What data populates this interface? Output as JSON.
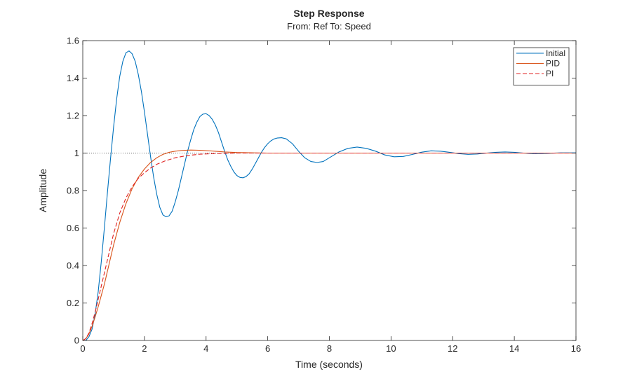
{
  "chart_data": {
    "type": "line",
    "title": "Step Response",
    "subtitle": "From: Ref  To: Speed",
    "xlabel": "Time (seconds)",
    "ylabel": "Amplitude",
    "xlim": [
      0,
      16
    ],
    "ylim": [
      0,
      1.6
    ],
    "xticks": [
      0,
      2,
      4,
      6,
      8,
      10,
      12,
      14,
      16
    ],
    "yticks": [
      0,
      0.2,
      0.4,
      0.6,
      0.8,
      1,
      1.2,
      1.4,
      1.6
    ],
    "grid": false,
    "legend_position": "top-right",
    "reference_line": {
      "y": 1,
      "style": "dotted",
      "color": "#333333"
    },
    "series": [
      {
        "name": "Initial",
        "color": "#0072BD",
        "style": "solid",
        "points": [
          [
            0,
            0
          ],
          [
            0.1,
            0.0
          ],
          [
            0.2,
            0.02
          ],
          [
            0.3,
            0.06
          ],
          [
            0.4,
            0.14
          ],
          [
            0.5,
            0.26
          ],
          [
            0.6,
            0.42
          ],
          [
            0.7,
            0.6
          ],
          [
            0.8,
            0.79
          ],
          [
            0.9,
            0.97
          ],
          [
            1.0,
            1.14
          ],
          [
            1.1,
            1.29
          ],
          [
            1.2,
            1.41
          ],
          [
            1.3,
            1.49
          ],
          [
            1.4,
            1.535
          ],
          [
            1.5,
            1.545
          ],
          [
            1.6,
            1.53
          ],
          [
            1.7,
            1.49
          ],
          [
            1.8,
            1.42
          ],
          [
            1.9,
            1.33
          ],
          [
            2.0,
            1.22
          ],
          [
            2.1,
            1.1
          ],
          [
            2.2,
            0.98
          ],
          [
            2.3,
            0.87
          ],
          [
            2.4,
            0.78
          ],
          [
            2.5,
            0.71
          ],
          [
            2.6,
            0.67
          ],
          [
            2.7,
            0.66
          ],
          [
            2.8,
            0.665
          ],
          [
            2.9,
            0.69
          ],
          [
            3.0,
            0.74
          ],
          [
            3.1,
            0.8
          ],
          [
            3.2,
            0.87
          ],
          [
            3.3,
            0.94
          ],
          [
            3.4,
            1.01
          ],
          [
            3.5,
            1.07
          ],
          [
            3.6,
            1.125
          ],
          [
            3.7,
            1.165
          ],
          [
            3.8,
            1.195
          ],
          [
            3.9,
            1.208
          ],
          [
            4.0,
            1.21
          ],
          [
            4.1,
            1.2
          ],
          [
            4.2,
            1.18
          ],
          [
            4.3,
            1.15
          ],
          [
            4.4,
            1.11
          ],
          [
            4.5,
            1.06
          ],
          [
            4.6,
            1.01
          ],
          [
            4.7,
            0.965
          ],
          [
            4.8,
            0.93
          ],
          [
            4.9,
            0.9
          ],
          [
            5.0,
            0.88
          ],
          [
            5.1,
            0.87
          ],
          [
            5.2,
            0.868
          ],
          [
            5.3,
            0.875
          ],
          [
            5.4,
            0.89
          ],
          [
            5.5,
            0.915
          ],
          [
            5.6,
            0.945
          ],
          [
            5.7,
            0.975
          ],
          [
            5.8,
            1.005
          ],
          [
            5.9,
            1.03
          ],
          [
            6.0,
            1.05
          ],
          [
            6.1,
            1.065
          ],
          [
            6.2,
            1.075
          ],
          [
            6.3,
            1.08
          ],
          [
            6.45,
            1.082
          ],
          [
            6.6,
            1.076
          ],
          [
            6.8,
            1.05
          ],
          [
            7.0,
            1.01
          ],
          [
            7.2,
            0.975
          ],
          [
            7.4,
            0.955
          ],
          [
            7.6,
            0.95
          ],
          [
            7.8,
            0.955
          ],
          [
            8.0,
            0.975
          ],
          [
            8.3,
            1.005
          ],
          [
            8.6,
            1.025
          ],
          [
            8.9,
            1.032
          ],
          [
            9.2,
            1.025
          ],
          [
            9.5,
            1.01
          ],
          [
            9.8,
            0.99
          ],
          [
            10.1,
            0.98
          ],
          [
            10.4,
            0.982
          ],
          [
            10.7,
            0.993
          ],
          [
            11.0,
            1.005
          ],
          [
            11.3,
            1.012
          ],
          [
            11.6,
            1.01
          ],
          [
            11.9,
            1.004
          ],
          [
            12.2,
            0.997
          ],
          [
            12.5,
            0.993
          ],
          [
            12.8,
            0.995
          ],
          [
            13.1,
            1.0
          ],
          [
            13.4,
            1.004
          ],
          [
            13.7,
            1.006
          ],
          [
            14.0,
            1.004
          ],
          [
            14.3,
            1.0
          ],
          [
            14.6,
            0.997
          ],
          [
            15.0,
            0.998
          ],
          [
            15.5,
            1.001
          ],
          [
            16.0,
            1.001
          ]
        ]
      },
      {
        "name": "PID",
        "color": "#D95319",
        "style": "solid",
        "points": [
          [
            0,
            0
          ],
          [
            0.1,
            0.01
          ],
          [
            0.2,
            0.035
          ],
          [
            0.3,
            0.075
          ],
          [
            0.4,
            0.125
          ],
          [
            0.5,
            0.18
          ],
          [
            0.6,
            0.24
          ],
          [
            0.7,
            0.3
          ],
          [
            0.8,
            0.37
          ],
          [
            0.9,
            0.44
          ],
          [
            1.0,
            0.51
          ],
          [
            1.2,
            0.63
          ],
          [
            1.4,
            0.73
          ],
          [
            1.6,
            0.81
          ],
          [
            1.8,
            0.87
          ],
          [
            2.0,
            0.915
          ],
          [
            2.2,
            0.95
          ],
          [
            2.4,
            0.975
          ],
          [
            2.6,
            0.993
          ],
          [
            2.8,
            1.004
          ],
          [
            3.0,
            1.01
          ],
          [
            3.2,
            1.014
          ],
          [
            3.5,
            1.016
          ],
          [
            3.8,
            1.015
          ],
          [
            4.2,
            1.011
          ],
          [
            4.6,
            1.006
          ],
          [
            5.0,
            1.003
          ],
          [
            6.0,
            1.0
          ],
          [
            8.0,
            1.0
          ],
          [
            16.0,
            1.0
          ]
        ]
      },
      {
        "name": "PI",
        "color": "#E02020",
        "style": "dashed",
        "points": [
          [
            0,
            0
          ],
          [
            0.1,
            0.01
          ],
          [
            0.2,
            0.04
          ],
          [
            0.3,
            0.09
          ],
          [
            0.4,
            0.15
          ],
          [
            0.5,
            0.22
          ],
          [
            0.6,
            0.29
          ],
          [
            0.7,
            0.36
          ],
          [
            0.8,
            0.43
          ],
          [
            0.9,
            0.5
          ],
          [
            1.0,
            0.57
          ],
          [
            1.2,
            0.68
          ],
          [
            1.4,
            0.76
          ],
          [
            1.6,
            0.82
          ],
          [
            1.8,
            0.865
          ],
          [
            2.0,
            0.895
          ],
          [
            2.2,
            0.92
          ],
          [
            2.4,
            0.94
          ],
          [
            2.7,
            0.96
          ],
          [
            3.0,
            0.975
          ],
          [
            3.4,
            0.987
          ],
          [
            3.8,
            0.994
          ],
          [
            4.4,
            0.998
          ],
          [
            5.0,
            1.0
          ],
          [
            16.0,
            1.0
          ]
        ]
      }
    ]
  }
}
